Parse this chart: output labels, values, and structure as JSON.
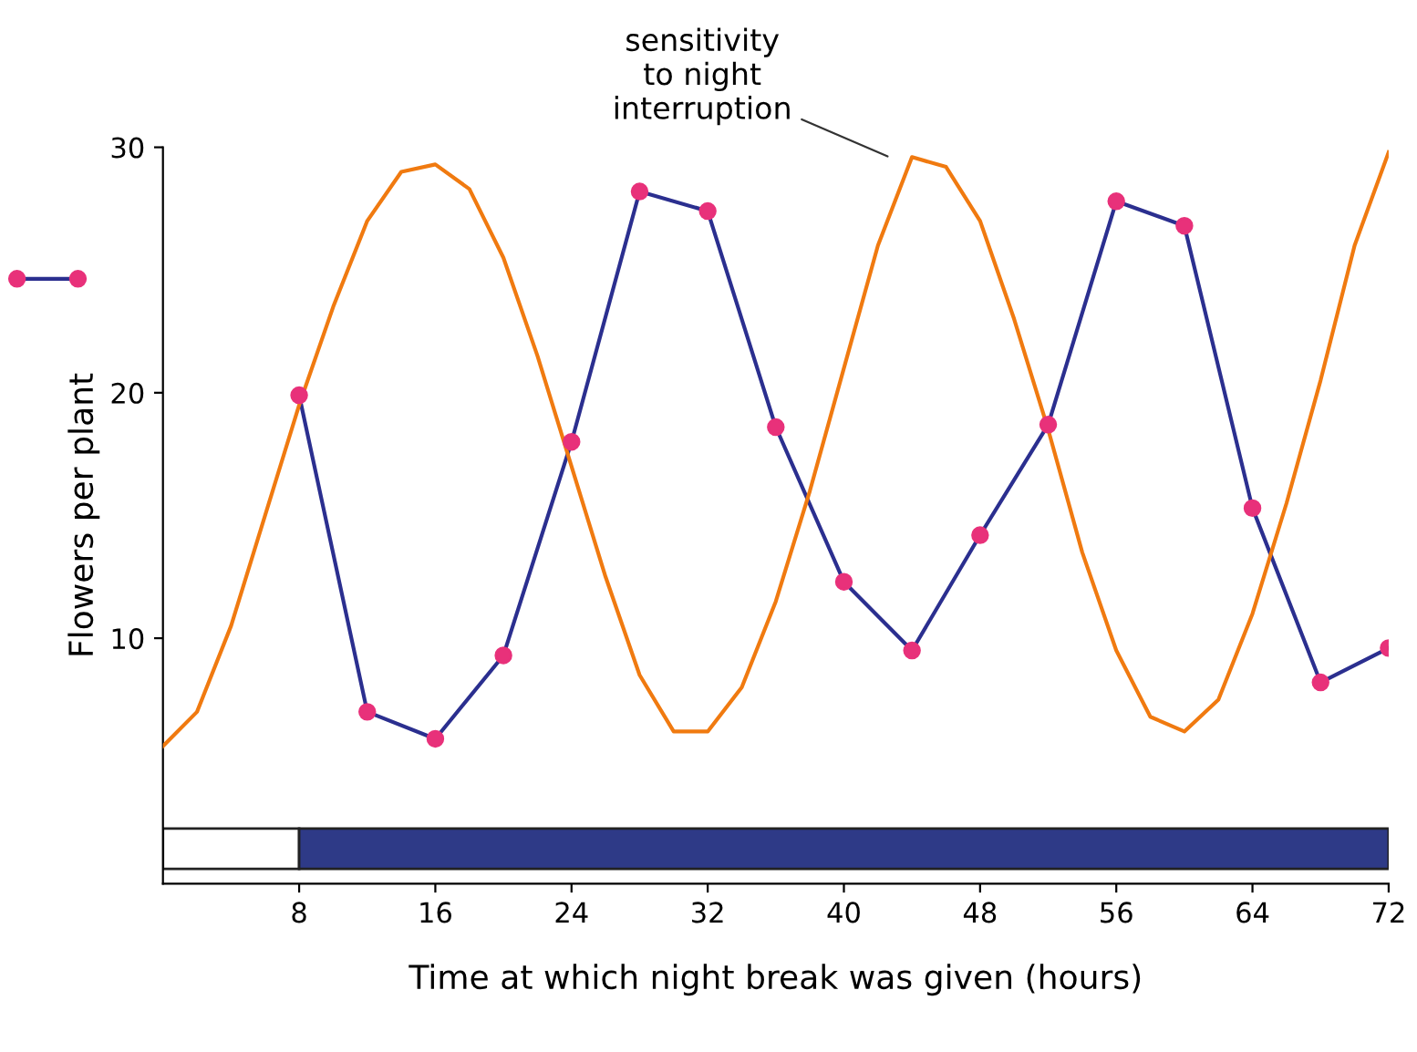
{
  "chart_data": {
    "type": "line",
    "xlabel": "Time at which night break was given (hours)",
    "ylabel": "Flowers per plant",
    "xlim": [
      0,
      72
    ],
    "xticks": [
      8,
      16,
      24,
      32,
      40,
      48,
      56,
      64,
      72
    ],
    "ylim": [
      0,
      30
    ],
    "yticks": [
      10,
      20,
      30
    ],
    "grid": false,
    "series": [
      {
        "marker": "circle",
        "color": "#2b2f8f",
        "colors": [
          "#e8317a",
          "#e8317a",
          "#e8317a",
          "#e8317a",
          "#e8317a",
          "#e8317a",
          "#e8317a",
          "#e8317a",
          "#e8317a",
          "#e8317a",
          "#e8317a",
          "#e8317a",
          "#e8317a",
          "#e8317a",
          "#e8317a",
          "#e8317a",
          "#e8317a"
        ],
        "x": [
          8,
          12,
          16,
          20,
          24,
          28,
          32,
          36,
          40,
          44,
          48,
          52,
          56,
          60,
          64,
          68,
          72
        ],
        "values": [
          19.9,
          7.0,
          5.9,
          9.3,
          18.0,
          28.2,
          27.4,
          18.6,
          12.3,
          9.5,
          14.2,
          18.7,
          27.8,
          26.8,
          15.3,
          8.2,
          9.6
        ]
      },
      {
        "marker": "none",
        "color": "#f07a10",
        "x": [
          0,
          2,
          4,
          6,
          8,
          10,
          12,
          14,
          16,
          18,
          20,
          22,
          24,
          26,
          28,
          30,
          32,
          34,
          36,
          38,
          40,
          42,
          44,
          46,
          48,
          50,
          52,
          54,
          56,
          58,
          60,
          62,
          64,
          66,
          68,
          70,
          72
        ],
        "values": [
          5.6,
          7,
          10.5,
          15,
          19.5,
          23.5,
          27,
          29,
          29.3,
          28.3,
          25.5,
          21.5,
          17,
          12.5,
          8.5,
          6.2,
          6.2,
          8,
          11.5,
          16,
          21,
          26,
          29.6,
          29.2,
          27,
          23,
          18.5,
          13.5,
          9.5,
          6.8,
          6.2,
          7.5,
          11,
          15.5,
          20.5,
          26,
          29.8
        ]
      }
    ],
    "bands": [
      {
        "axis": "x",
        "from": 0,
        "to": 8,
        "color": "#ffffff"
      },
      {
        "axis": "x",
        "from": 8,
        "to": 72,
        "color": "#2e3a87"
      }
    ],
    "annotations": [
      "sensitivity\nto night\ninterruption"
    ]
  }
}
